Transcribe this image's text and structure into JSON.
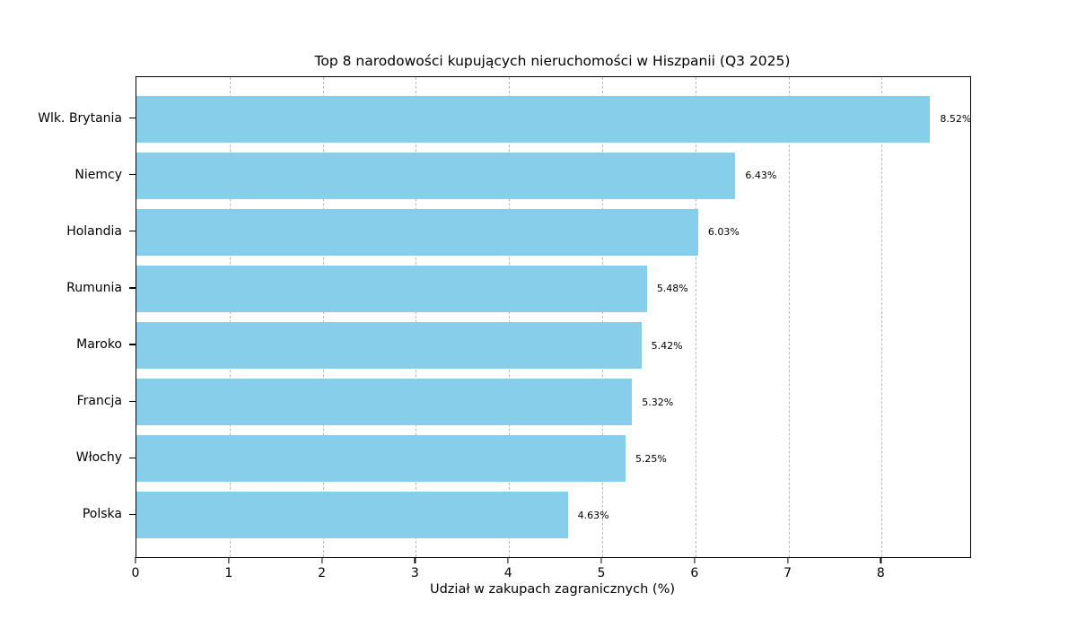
{
  "figure": {
    "background": "#ffffff"
  },
  "chart_data": {
    "type": "bar",
    "orientation": "horizontal",
    "title": "Top 8 narodowości kupujących nieruchomości w Hiszpanii (Q3 2025)",
    "xlabel": "Udział w zakupach zagranicznych (%)",
    "ylabel": "",
    "categories": [
      "Wlk. Brytania",
      "Niemcy",
      "Holandia",
      "Rumunia",
      "Maroko",
      "Francja",
      "Włochy",
      "Polska"
    ],
    "values": [
      8.52,
      6.43,
      6.03,
      5.48,
      5.42,
      5.32,
      5.25,
      4.63
    ],
    "value_labels": [
      "8.52%",
      "6.43%",
      "6.03%",
      "5.48%",
      "5.42%",
      "5.32%",
      "5.25%",
      "4.63%"
    ],
    "xticks": [
      0,
      1,
      2,
      3,
      4,
      5,
      6,
      7,
      8
    ],
    "xtick_labels": [
      "0",
      "1",
      "2",
      "3",
      "4",
      "5",
      "6",
      "7",
      "8"
    ],
    "xlim": [
      0,
      8.95
    ],
    "grid": {
      "axis": "x",
      "style": "dashed",
      "color": "#b9b9b9"
    },
    "bar_color": "#87CEEB",
    "axis_color": "#000000",
    "legend_position": "none"
  }
}
